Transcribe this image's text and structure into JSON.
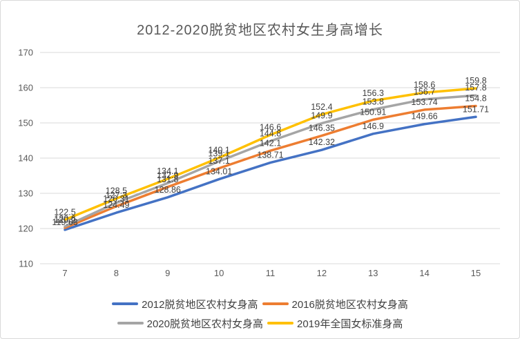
{
  "title": "2012-2020脱贫地区农村女生身高增长",
  "chart_data": {
    "type": "line",
    "title": "2012-2020脱贫地区农村女生身高增长",
    "xlabel": "",
    "ylabel": "",
    "categories": [
      7,
      8,
      9,
      10,
      11,
      12,
      13,
      14,
      15
    ],
    "series": [
      {
        "name": "2012脱贫地区农村女身高",
        "color": "#4472C4",
        "values": [
          119.63,
          124.49,
          128.86,
          134.01,
          138.71,
          142.32,
          146.9,
          149.66,
          151.71
        ]
      },
      {
        "name": "2016脱贫地区农村女身高",
        "color": "#ED7D31",
        "values": [
          120.2,
          126.31,
          131.8,
          137.1,
          142.1,
          146.35,
          150.91,
          153.74,
          154.8
        ]
      },
      {
        "name": "2020脱贫地区农村女身高",
        "color": "#A5A5A5",
        "values": [
          120.6,
          127.3,
          132.9,
          139.1,
          144.8,
          149.9,
          153.8,
          156.7,
          157.8
        ]
      },
      {
        "name": "2019年全国女标准身高",
        "color": "#FFC000",
        "values": [
          122.5,
          128.5,
          134.1,
          140.1,
          146.6,
          152.4,
          156.3,
          158.6,
          159.8
        ]
      }
    ],
    "ylim": [
      110,
      170
    ],
    "yticks": [
      110,
      120,
      130,
      140,
      150,
      160,
      170
    ],
    "grid": true,
    "gridline_color": "#d9d9d9",
    "data_labels": true,
    "legend_position": "bottom",
    "legend_rows": [
      [
        0,
        1
      ],
      [
        2,
        3
      ]
    ]
  }
}
